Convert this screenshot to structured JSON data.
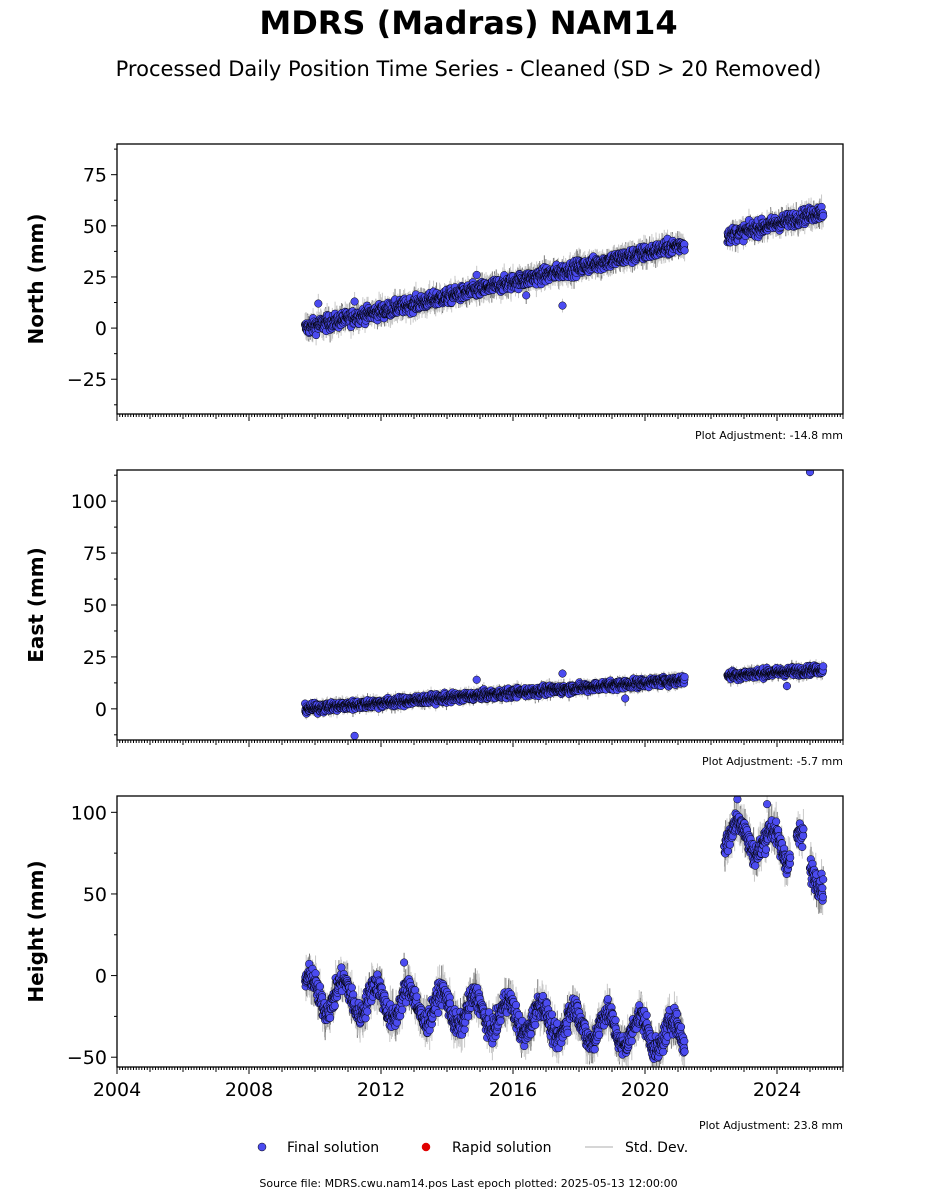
{
  "title": "MDRS (Madras) NAM14",
  "subtitle": "Processed Daily Position Time Series - Cleaned (SD > 20 Removed)",
  "footer": "Source file: MDRS.cwu.nam14.pos  Last epoch plotted: 2025-05-13 12:00:00",
  "legend": {
    "final": "Final solution",
    "rapid": "Rapid solution",
    "sd": "Std. Dev."
  },
  "colors": {
    "final": "#4b4bf0",
    "rapid": "#e00000",
    "sd": "#c8c8c8",
    "edge": "#000000"
  },
  "chart_data": [
    {
      "type": "scatter",
      "panel": "north",
      "ylabel": "North (mm)",
      "adjustment_label": "Plot Adjustment: -14.8 mm",
      "xlim": [
        2004,
        2026
      ],
      "ylim": [
        -42,
        90
      ],
      "yticks": [
        -25,
        0,
        25,
        50,
        75
      ],
      "ytick_labels": [
        "−25",
        "0",
        "25",
        "50",
        "75"
      ],
      "xticks": [],
      "xtick_labels": [],
      "trend": {
        "segments": [
          {
            "x": [
              2009.7,
              2021.2
            ],
            "y": [
              0,
              41
            ]
          },
          {
            "x": [
              2022.5,
              2025.4
            ],
            "y": [
              45,
              57
            ]
          }
        ],
        "noise": 2.5
      },
      "outliers": [
        {
          "x": 2010.1,
          "y": 12
        },
        {
          "x": 2011.2,
          "y": 13
        },
        {
          "x": 2014.9,
          "y": 26
        },
        {
          "x": 2016.4,
          "y": 16
        },
        {
          "x": 2017.5,
          "y": 11
        }
      ]
    },
    {
      "type": "scatter",
      "panel": "east",
      "ylabel": "East (mm)",
      "adjustment_label": "Plot Adjustment: -5.7 mm",
      "xlim": [
        2004,
        2026
      ],
      "ylim": [
        -15,
        115
      ],
      "yticks": [
        0,
        25,
        50,
        75,
        100
      ],
      "ytick_labels": [
        "0",
        "25",
        "50",
        "75",
        "100"
      ],
      "xticks": [],
      "xtick_labels": [],
      "trend": {
        "segments": [
          {
            "x": [
              2009.7,
              2021.2
            ],
            "y": [
              0,
              14
            ]
          },
          {
            "x": [
              2022.5,
              2025.4
            ],
            "y": [
              16,
              19
            ]
          }
        ],
        "noise": 1.5
      },
      "outliers": [
        {
          "x": 2011.2,
          "y": -13
        },
        {
          "x": 2014.9,
          "y": 14
        },
        {
          "x": 2017.5,
          "y": 17
        },
        {
          "x": 2019.4,
          "y": 5
        },
        {
          "x": 2024.3,
          "y": 11
        },
        {
          "x": 2025.0,
          "y": 114
        }
      ]
    },
    {
      "type": "scatter",
      "panel": "height",
      "ylabel": "Height (mm)",
      "adjustment_label": "Plot Adjustment: 23.8 mm",
      "xlim": [
        2004,
        2026
      ],
      "ylim": [
        -56,
        110
      ],
      "yticks": [
        -50,
        0,
        50,
        100
      ],
      "ytick_labels": [
        "−50",
        "0",
        "50",
        "100"
      ],
      "xticks": [
        2004,
        2008,
        2012,
        2016,
        2020,
        2024
      ],
      "xtick_labels": [
        "2004",
        "2008",
        "2012",
        "2016",
        "2020",
        "2024"
      ],
      "trend": {
        "segments": [
          {
            "x": [
              2009.7,
              2021.2
            ],
            "y": [
              -10,
              -38
            ],
            "seasonal": 10
          },
          {
            "x": [
              2022.4,
              2024.4
            ],
            "y": [
              88,
              78
            ],
            "seasonal": 9
          },
          {
            "x": [
              2024.6,
              2024.8
            ],
            "y": [
              86,
              82
            ],
            "seasonal": 3
          },
          {
            "x": [
              2025.0,
              2025.4
            ],
            "y": [
              64,
              56
            ],
            "seasonal": 3
          }
        ],
        "noise": 5
      },
      "outliers": [
        {
          "x": 2012.7,
          "y": 8
        },
        {
          "x": 2022.8,
          "y": 108
        },
        {
          "x": 2023.7,
          "y": 105
        }
      ]
    }
  ]
}
